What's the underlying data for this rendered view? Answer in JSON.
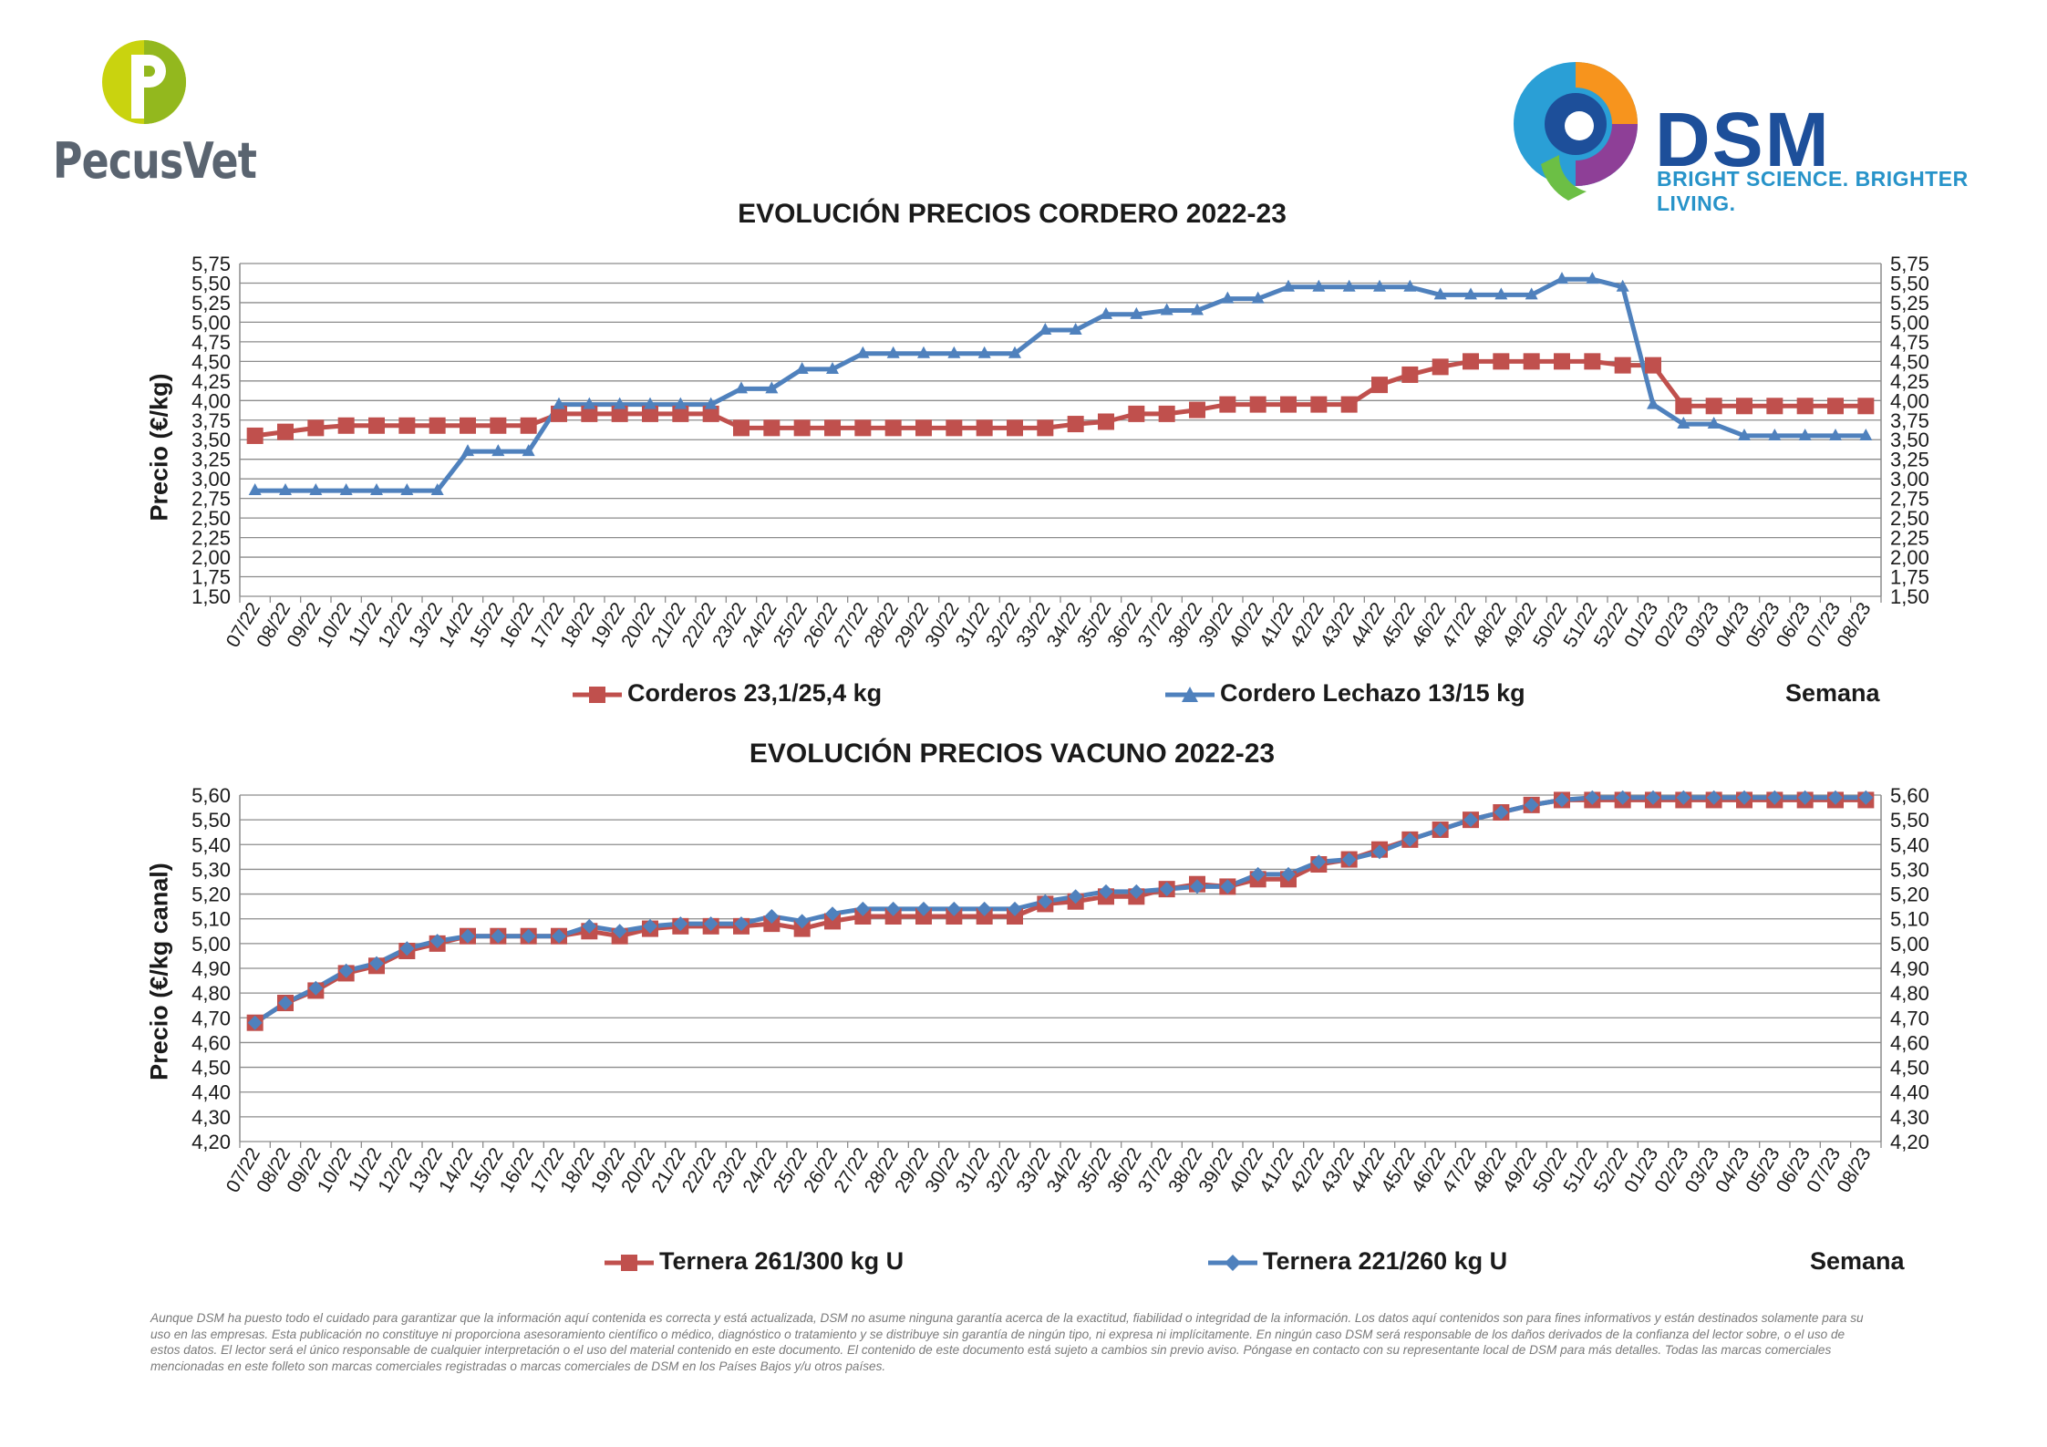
{
  "header": {
    "left_brand": "PecusVet",
    "right_brand": "DSM",
    "right_tagline": "BRIGHT SCIENCE. BRIGHTER LIVING."
  },
  "colors": {
    "red_series": "#c0504d",
    "blue_series": "#4f81bd",
    "pecusvet_yellow": "#c9d30f",
    "pecusvet_green": "#93b81e",
    "dsm_blue": "#1d4f9a"
  },
  "weeks": [
    "07/22",
    "08/22",
    "09/22",
    "10/22",
    "11/22",
    "12/22",
    "13/22",
    "14/22",
    "15/22",
    "16/22",
    "17/22",
    "18/22",
    "19/22",
    "20/22",
    "21/22",
    "22/22",
    "23/22",
    "24/22",
    "25/22",
    "26/22",
    "27/22",
    "28/22",
    "29/22",
    "30/22",
    "31/22",
    "32/22",
    "33/22",
    "34/22",
    "35/22",
    "36/22",
    "37/22",
    "38/22",
    "39/22",
    "40/22",
    "41/22",
    "42/22",
    "43/22",
    "44/22",
    "45/22",
    "46/22",
    "47/22",
    "48/22",
    "49/22",
    "50/22",
    "51/22",
    "52/22",
    "01/23",
    "02/23",
    "03/23",
    "04/23",
    "05/23",
    "06/23",
    "07/23",
    "08/23"
  ],
  "chart_data": [
    {
      "type": "line",
      "title": "EVOLUCIÓN PRECIOS CORDERO 2022-23",
      "ylabel": "Precio (€/kg)",
      "xlabel": "Semana",
      "ylim": [
        1.5,
        5.75
      ],
      "ytick_step": 0.25,
      "yticks": [
        "1,50",
        "1,75",
        "2,00",
        "2,25",
        "2,50",
        "2,75",
        "3,00",
        "3,25",
        "3,50",
        "3,75",
        "4,00",
        "4,25",
        "4,50",
        "4,75",
        "5,00",
        "5,25",
        "5,50",
        "5,75"
      ],
      "grid": true,
      "legend_position": "bottom",
      "series": [
        {
          "name": "Corderos 23,1/25,4 kg",
          "marker": "square",
          "color": "#c0504d",
          "values": [
            3.55,
            3.6,
            3.65,
            3.68,
            3.68,
            3.68,
            3.68,
            3.68,
            3.68,
            3.68,
            3.83,
            3.83,
            3.83,
            3.83,
            3.83,
            3.83,
            3.65,
            3.65,
            3.65,
            3.65,
            3.65,
            3.65,
            3.65,
            3.65,
            3.65,
            3.65,
            3.65,
            3.7,
            3.73,
            3.83,
            3.83,
            3.88,
            3.95,
            3.95,
            3.95,
            3.95,
            3.95,
            4.2,
            4.33,
            4.43,
            4.5,
            4.5,
            4.5,
            4.5,
            4.5,
            4.45,
            4.45,
            3.93,
            3.93,
            3.93,
            3.93,
            3.93,
            3.93,
            3.93
          ]
        },
        {
          "name": "Cordero Lechazo 13/15 kg",
          "marker": "triangle",
          "color": "#4f81bd",
          "values": [
            2.85,
            2.85,
            2.85,
            2.85,
            2.85,
            2.85,
            2.85,
            3.35,
            3.35,
            3.35,
            3.95,
            3.95,
            3.95,
            3.95,
            3.95,
            3.95,
            4.15,
            4.15,
            4.4,
            4.4,
            4.6,
            4.6,
            4.6,
            4.6,
            4.6,
            4.6,
            4.9,
            4.9,
            5.1,
            5.1,
            5.15,
            5.15,
            5.3,
            5.3,
            5.45,
            5.45,
            5.45,
            5.45,
            5.45,
            5.35,
            5.35,
            5.35,
            5.35,
            5.55,
            5.55,
            5.45,
            3.95,
            3.7,
            3.7,
            3.55,
            3.55,
            3.55,
            3.55,
            3.55
          ]
        }
      ]
    },
    {
      "type": "line",
      "title": "EVOLUCIÓN PRECIOS VACUNO 2022-23",
      "ylabel": "Precio (€/kg canal)",
      "xlabel": "Semana",
      "ylim": [
        4.2,
        5.6
      ],
      "ytick_step": 0.1,
      "yticks": [
        "4,20",
        "4,30",
        "4,40",
        "4,50",
        "4,60",
        "4,70",
        "4,80",
        "4,90",
        "5,00",
        "5,10",
        "5,20",
        "5,30",
        "5,40",
        "5,50",
        "5,60"
      ],
      "grid": true,
      "legend_position": "bottom",
      "series": [
        {
          "name": "Ternera 261/300 kg U",
          "marker": "square",
          "color": "#c0504d",
          "values": [
            4.68,
            4.76,
            4.81,
            4.88,
            4.91,
            4.97,
            5.0,
            5.03,
            5.03,
            5.03,
            5.03,
            5.05,
            5.03,
            5.06,
            5.07,
            5.07,
            5.07,
            5.08,
            5.06,
            5.09,
            5.11,
            5.11,
            5.11,
            5.11,
            5.11,
            5.11,
            5.16,
            5.17,
            5.19,
            5.19,
            5.22,
            5.24,
            5.23,
            5.26,
            5.26,
            5.32,
            5.34,
            5.38,
            5.42,
            5.46,
            5.5,
            5.53,
            5.56,
            5.58,
            5.58,
            5.58,
            5.58,
            5.58,
            5.58,
            5.58,
            5.58,
            5.58,
            5.58,
            5.58
          ]
        },
        {
          "name": "Ternera 221/260 kg U",
          "marker": "diamond",
          "color": "#4f81bd",
          "values": [
            4.68,
            4.76,
            4.82,
            4.89,
            4.92,
            4.98,
            5.01,
            5.03,
            5.03,
            5.03,
            5.03,
            5.07,
            5.05,
            5.07,
            5.08,
            5.08,
            5.08,
            5.11,
            5.09,
            5.12,
            5.14,
            5.14,
            5.14,
            5.14,
            5.14,
            5.14,
            5.17,
            5.19,
            5.21,
            5.21,
            5.22,
            5.23,
            5.23,
            5.28,
            5.28,
            5.33,
            5.34,
            5.37,
            5.42,
            5.46,
            5.5,
            5.53,
            5.56,
            5.58,
            5.59,
            5.59,
            5.59,
            5.59,
            5.59,
            5.59,
            5.59,
            5.59,
            5.59,
            5.59
          ]
        }
      ]
    }
  ],
  "disclaimer": "Aunque DSM ha puesto todo el cuidado para garantizar que la información aquí contenida es correcta y está actualizada, DSM no asume ninguna garantía acerca de la exactitud, fiabilidad o integridad de la información. Los datos aquí contenidos son para fines informativos y están destinados solamente para su uso en las empresas. Esta publicación no constituye ni proporciona asesoramiento científico o médico, diagnóstico o tratamiento y se distribuye sin garantía de ningún tipo, ni expresa ni implícitamente. En ningún caso DSM será responsable de los daños derivados de la confianza del lector sobre, o el uso de estos datos. El lector será el único responsable de cualquier interpretación o el uso del material contenido en este documento. El contenido de este documento está sujeto a cambios sin previo aviso. Póngase en contacto con su representante local de DSM para más detalles. Todas las marcas comerciales mencionadas en este folleto son marcas comerciales registradas o marcas comerciales de DSM en los Países Bajos y/u otros países."
}
